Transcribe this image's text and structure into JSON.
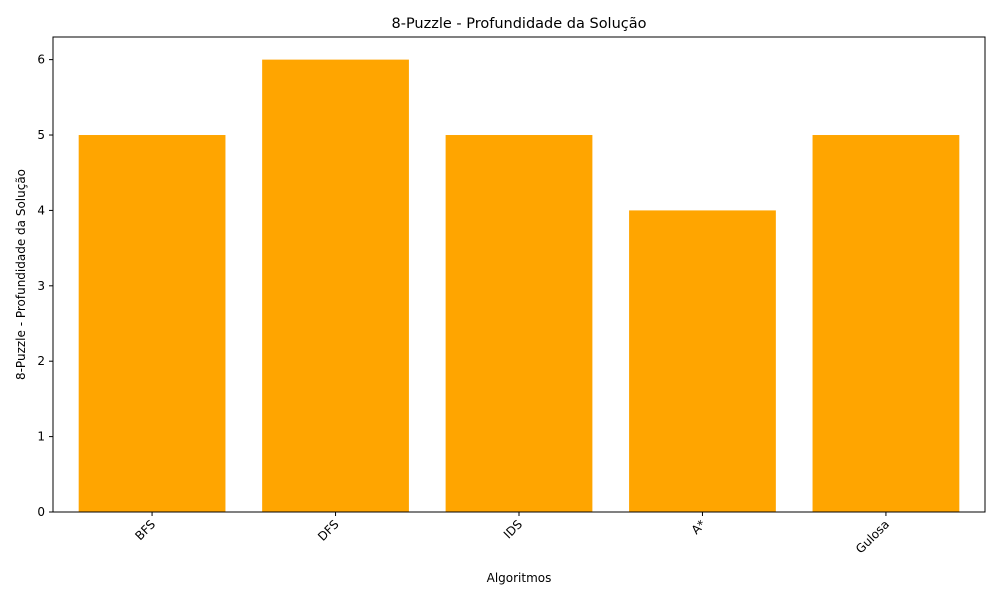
{
  "chart_data": {
    "type": "bar",
    "title": "8-Puzzle - Profundidade da Solução",
    "xlabel": "Algoritmos",
    "ylabel": "8-Puzzle - Profundidade da Solução",
    "categories": [
      "BFS",
      "DFS",
      "IDS",
      "A*",
      "Gulosa"
    ],
    "values": [
      5,
      6,
      5,
      4,
      5
    ],
    "ylim": [
      0,
      6.3
    ],
    "yticks": [
      0,
      1,
      2,
      3,
      4,
      5,
      6
    ],
    "bar_color": "#FFA500",
    "grid": false,
    "legend": false
  }
}
